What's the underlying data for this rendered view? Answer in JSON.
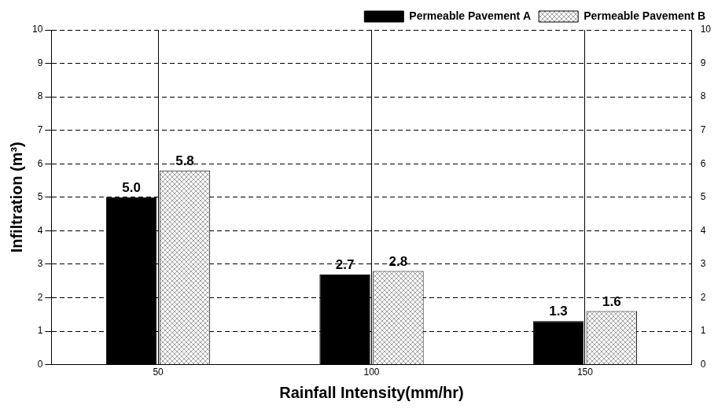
{
  "chart_data": {
    "type": "bar",
    "x_label": "Rainfall Intensity(mm/hr)",
    "y_label": "Infiltration (m³)",
    "categories": [
      "50",
      "100",
      "150"
    ],
    "series": [
      {
        "name": "Permeable Pavement A",
        "color": "#000000",
        "values": [
          5.0,
          2.7,
          1.3
        ],
        "value_labels": [
          "5.0",
          "2.7",
          "1.3"
        ]
      },
      {
        "name": "Permeable Pavement B",
        "color": "#a0a0a0",
        "values": [
          5.8,
          2.8,
          1.6
        ],
        "value_labels": [
          "5.8",
          "2.8",
          "1.6"
        ]
      }
    ],
    "ylim": [
      0,
      10
    ],
    "yticks": [
      0,
      1,
      2,
      3,
      4,
      5,
      6,
      7,
      8,
      9,
      10
    ],
    "y2lim": [
      0,
      10
    ],
    "y2ticks": [
      0,
      1,
      2,
      3,
      4,
      5,
      6,
      7,
      8,
      9,
      10
    ],
    "grid": true,
    "legend": "top-right",
    "data_labels": true
  }
}
